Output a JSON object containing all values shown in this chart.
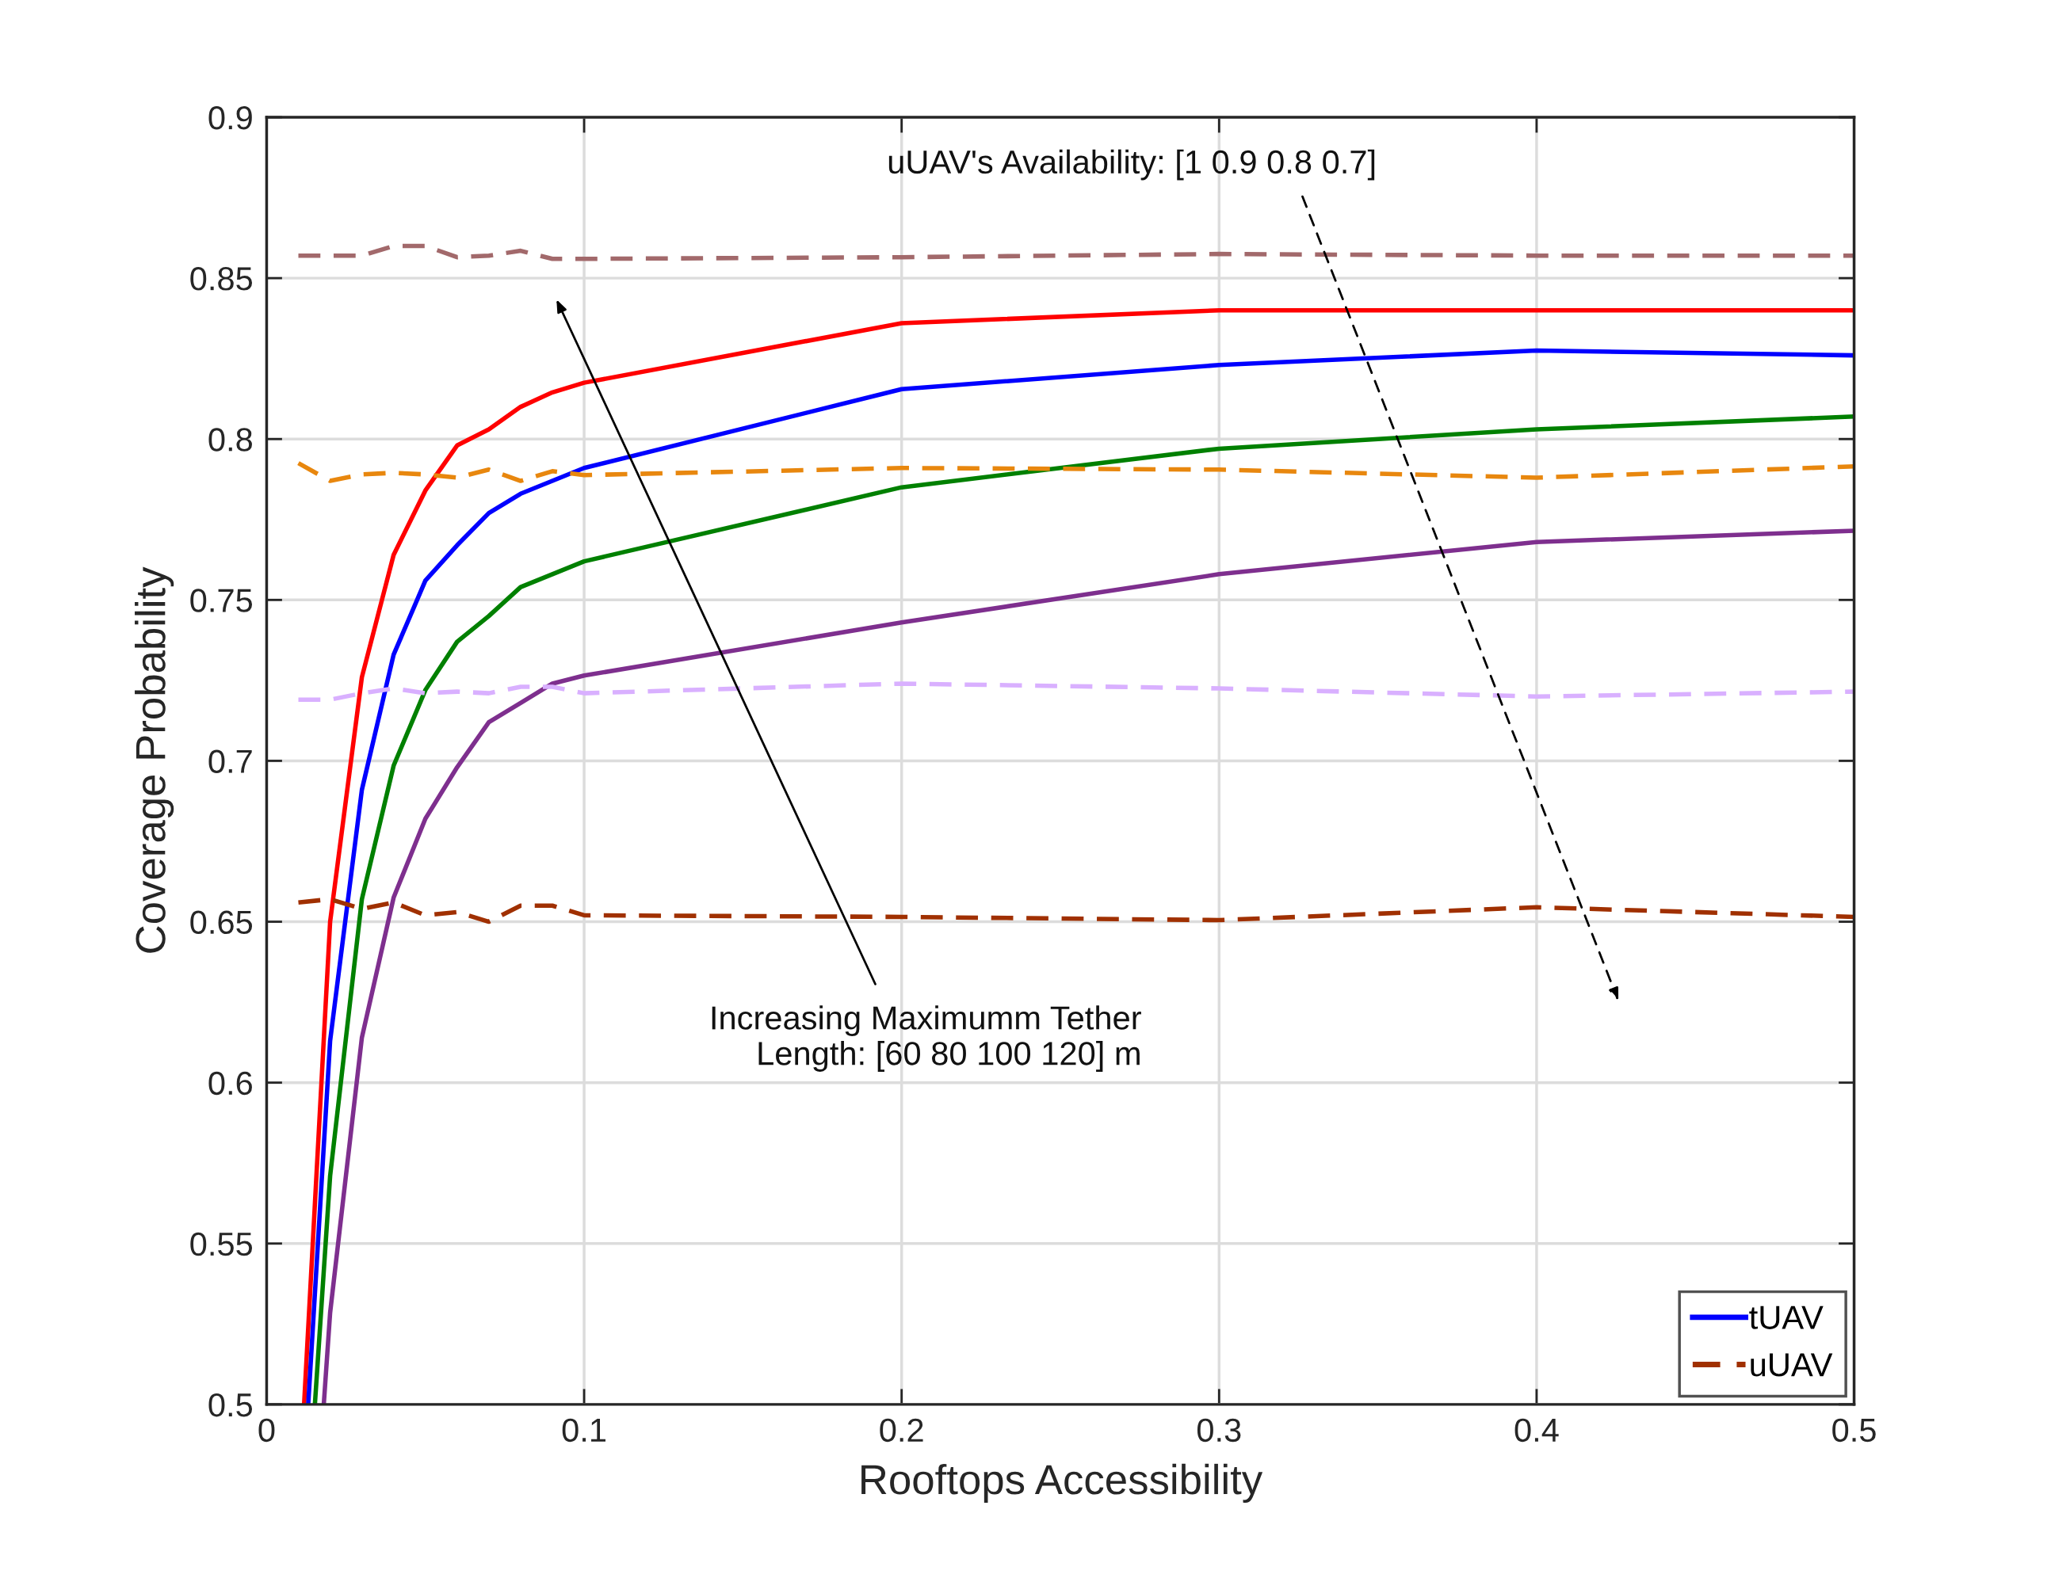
{
  "chart_data": {
    "type": "line",
    "xlabel": "Rooftops Accessibility",
    "ylabel": "Coverage Probability",
    "xlim": [
      0,
      0.5
    ],
    "xticks": [
      0,
      0.1,
      0.2,
      0.3,
      0.4,
      0.5
    ],
    "ylim": [
      0.5,
      0.9
    ],
    "yticks": [
      0.5,
      0.55,
      0.6,
      0.65,
      0.7,
      0.75,
      0.8,
      0.85,
      0.9
    ],
    "grid": true,
    "legend": "bottom right",
    "marker": "none",
    "annotations": [
      "uUAV's Availability: [1 0.9 0.8 0.7]",
      "Increasing Maximumm Tether\nLength: [60 80 100 120] m"
    ],
    "series": [
      {
        "color": "#ff0000",
        "line_style": "solid",
        "x": [
          0.0118,
          0.02,
          0.03,
          0.04,
          0.05,
          0.06,
          0.07,
          0.08,
          0.09,
          0.1,
          0.2,
          0.3,
          0.4,
          0.5
        ],
        "values": [
          0.5,
          0.65,
          0.726,
          0.764,
          0.784,
          0.798,
          0.803,
          0.81,
          0.8145,
          0.8175,
          0.836,
          0.84,
          0.84,
          0.84
        ]
      },
      {
        "name": "tUAV",
        "color": "#0000ff",
        "line_style": "solid",
        "x": [
          0.0131,
          0.02,
          0.03,
          0.04,
          0.05,
          0.06,
          0.07,
          0.08,
          0.09,
          0.1,
          0.2,
          0.3,
          0.4,
          0.5
        ],
        "values": [
          0.5,
          0.613,
          0.691,
          0.733,
          0.756,
          0.767,
          0.777,
          0.783,
          0.787,
          0.791,
          0.8155,
          0.823,
          0.8275,
          0.826
        ]
      },
      {
        "color": "#008000",
        "line_style": "solid",
        "x": [
          0.0152,
          0.02,
          0.03,
          0.04,
          0.05,
          0.06,
          0.07,
          0.08,
          0.09,
          0.1,
          0.2,
          0.3,
          0.4,
          0.5
        ],
        "values": [
          0.5,
          0.571,
          0.657,
          0.6985,
          0.722,
          0.737,
          0.745,
          0.754,
          0.758,
          0.762,
          0.785,
          0.797,
          0.803,
          0.807
        ]
      },
      {
        "color": "#7e2f8e",
        "line_style": "solid",
        "x": [
          0.018,
          0.02,
          0.03,
          0.04,
          0.05,
          0.06,
          0.07,
          0.08,
          0.09,
          0.1,
          0.2,
          0.3,
          0.4,
          0.5
        ],
        "values": [
          0.5,
          0.5285,
          0.614,
          0.6575,
          0.682,
          0.698,
          0.712,
          0.718,
          0.724,
          0.7265,
          0.743,
          0.758,
          0.768,
          0.7715
        ]
      },
      {
        "color": "#a2696b",
        "line_style": "dashed",
        "x": [
          0.01,
          0.02,
          0.03,
          0.04,
          0.05,
          0.06,
          0.07,
          0.08,
          0.09,
          0.1,
          0.2,
          0.3,
          0.4,
          0.5
        ],
        "values": [
          0.857,
          0.857,
          0.857,
          0.86,
          0.86,
          0.8565,
          0.857,
          0.8585,
          0.856,
          0.856,
          0.8565,
          0.8575,
          0.857,
          0.857
        ]
      },
      {
        "color": "#e8870e",
        "line_style": "dashed",
        "x": [
          0.01,
          0.02,
          0.03,
          0.04,
          0.05,
          0.06,
          0.07,
          0.08,
          0.09,
          0.1,
          0.2,
          0.3,
          0.4,
          0.5
        ],
        "values": [
          0.7925,
          0.787,
          0.789,
          0.7895,
          0.789,
          0.788,
          0.7905,
          0.787,
          0.79,
          0.7888,
          0.791,
          0.7905,
          0.788,
          0.7915
        ]
      },
      {
        "color": "#d9b0ff",
        "line_style": "dashed",
        "x": [
          0.01,
          0.02,
          0.03,
          0.04,
          0.05,
          0.06,
          0.07,
          0.08,
          0.09,
          0.1,
          0.2,
          0.3,
          0.4,
          0.5
        ],
        "values": [
          0.719,
          0.719,
          0.721,
          0.7225,
          0.721,
          0.7215,
          0.721,
          0.723,
          0.723,
          0.721,
          0.724,
          0.7225,
          0.72,
          0.7215
        ]
      },
      {
        "name": "uUAV",
        "color": "#a03000",
        "line_style": "dashed",
        "x": [
          0.01,
          0.02,
          0.03,
          0.04,
          0.05,
          0.06,
          0.07,
          0.08,
          0.09,
          0.1,
          0.2,
          0.3,
          0.4,
          0.5
        ],
        "values": [
          0.656,
          0.657,
          0.654,
          0.656,
          0.652,
          0.653,
          0.65,
          0.655,
          0.655,
          0.652,
          0.6515,
          0.6505,
          0.6545,
          0.6515
        ]
      }
    ]
  }
}
